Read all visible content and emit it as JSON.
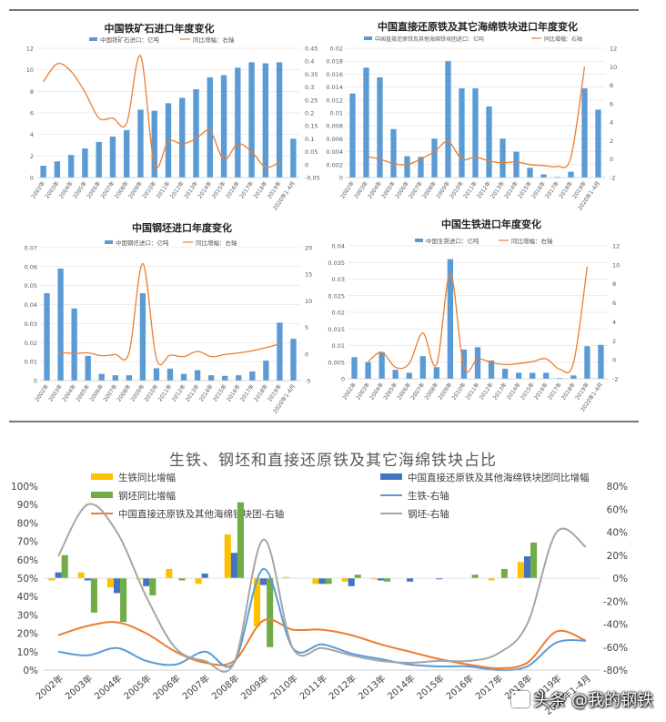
{
  "colors": {
    "bar": "#5b9bd5",
    "line": "#ed7d31",
    "axis_text": "#595959",
    "grid": "#d9d9d9",
    "yellow": "#ffc000",
    "blue": "#4472c4",
    "green": "#70ad47",
    "lightblue": "#5b9bd5",
    "grey": "#a5a5a5",
    "orange": "#ed7d31"
  },
  "watermark": {
    "text": "头条 @我的钢铁",
    "icon": "toutiao-logo-icon"
  },
  "chart_data": [
    {
      "type": "bar",
      "title": "中国铁矿石进口年度变化",
      "legend_bar": "中国铁矿石进口：亿吨",
      "legend_line": "同比增幅：右轴",
      "categories": [
        "2002年",
        "2003年",
        "2004年",
        "2005年",
        "2006年",
        "2007年",
        "2008年",
        "2009年",
        "2010年",
        "2011年",
        "2012年",
        "2013年",
        "2014年",
        "2015年",
        "2016年",
        "2017年",
        "2018年",
        "2019年",
        "2020年1-4月"
      ],
      "values": [
        1.1,
        1.5,
        2.1,
        2.7,
        3.3,
        3.8,
        4.4,
        6.3,
        6.2,
        6.9,
        7.4,
        8.2,
        9.3,
        9.5,
        10.2,
        10.7,
        10.6,
        10.7,
        3.6
      ],
      "line_values": [
        0.32,
        0.39,
        0.36,
        0.28,
        0.18,
        0.18,
        0.16,
        0.42,
        0.0,
        0.09,
        0.08,
        0.1,
        0.13,
        0.02,
        0.08,
        0.05,
        -0.01,
        0.01,
        null
      ],
      "ylim": [
        0,
        12
      ],
      "yticks": [
        "0",
        "2",
        "4",
        "6",
        "8",
        "10",
        "12"
      ],
      "y2lim": [
        -0.05,
        0.45
      ],
      "y2ticks": [
        "-0.05",
        "0",
        "0.05",
        "0.1",
        "0.15",
        "0.2",
        "0.25",
        "0.3",
        "0.35",
        "0.4",
        "0.45"
      ]
    },
    {
      "type": "bar",
      "title": "中国直接还原铁及其它海绵铁块进口年度变化",
      "legend_bar": "中国直接还原铁及其他海绵铁块团进口：亿吨",
      "legend_line": "同比增幅：右轴",
      "categories": [
        "2002年",
        "2003年",
        "2004年",
        "2005年",
        "2006年",
        "2007年",
        "2008年",
        "2009年",
        "2010年",
        "2011年",
        "2012年",
        "2013年",
        "2014年",
        "2015年",
        "2016年",
        "2017年",
        "2018年",
        "2019年",
        "2020年1-4月"
      ],
      "values": [
        0.013,
        0.017,
        0.0155,
        0.0075,
        0.0033,
        0.0032,
        0.006,
        0.018,
        0.0138,
        0.0138,
        0.011,
        0.006,
        0.004,
        0.0015,
        0.0005,
        0.0001,
        0.0009,
        0.0138,
        0.0105
      ],
      "line_values": [
        null,
        0.3,
        0.0,
        -0.5,
        -0.6,
        0.0,
        0.8,
        1.9,
        0.0,
        0.2,
        -0.2,
        -0.4,
        -0.3,
        -0.6,
        -0.7,
        -0.8,
        0.2,
        10.0,
        null
      ],
      "ylim": [
        0,
        0.02
      ],
      "yticks": [
        "0",
        "0.002",
        "0.004",
        "0.006",
        "0.008",
        "0.01",
        "0.012",
        "0.014",
        "0.016",
        "0.018",
        "0.02"
      ],
      "y2lim": [
        -2,
        12
      ],
      "y2ticks": [
        "-2",
        "0",
        "2",
        "4",
        "6",
        "8",
        "10",
        "12"
      ]
    },
    {
      "type": "bar",
      "title": "中国钢坯进口年度变化",
      "legend_bar": "中国钢坯进口：亿吨",
      "legend_line": "同比增幅：右轴",
      "categories": [
        "2002年",
        "2003年",
        "2004年",
        "2005年",
        "2006年",
        "2007年",
        "2008年",
        "2009年",
        "2010年",
        "2011年",
        "2012年",
        "2013年",
        "2014年",
        "2015年",
        "2016年",
        "2017年",
        "2018年",
        "2019年",
        "2020年1-4月"
      ],
      "values": [
        0.046,
        0.059,
        0.038,
        0.013,
        0.0035,
        0.0028,
        0.0028,
        0.046,
        0.0065,
        0.0063,
        0.0035,
        0.0055,
        0.0028,
        0.0025,
        0.0028,
        0.0048,
        0.0105,
        0.0305,
        0.022
      ],
      "line_values": [
        null,
        0.3,
        0.1,
        0.2,
        -0.3,
        -0.1,
        0.2,
        17.0,
        -0.9,
        -0.2,
        -0.5,
        0.5,
        -0.5,
        -0.1,
        0.2,
        0.6,
        1.2,
        1.9,
        null
      ],
      "ylim": [
        0,
        0.07
      ],
      "yticks": [
        "0",
        "0.01",
        "0.02",
        "0.03",
        "0.04",
        "0.05",
        "0.06",
        "0.07"
      ],
      "y2lim": [
        -5,
        20
      ],
      "y2ticks": [
        "-5",
        "0",
        "5",
        "10",
        "15",
        "20"
      ]
    },
    {
      "type": "bar",
      "title": "中国生铁进口年度变化",
      "legend_bar": "中国生铁进口：亿吨",
      "legend_line": "同比增幅：右轴",
      "categories": [
        "2002年",
        "2003年",
        "2004年",
        "2005年",
        "2006年",
        "2007年",
        "2008年",
        "2009年",
        "2010年",
        "2011年",
        "2012年",
        "2013年",
        "2014年",
        "2015年",
        "2016年",
        "2017年",
        "2018年",
        "2019年",
        "2020年1-4月"
      ],
      "values": [
        0.0065,
        0.005,
        0.008,
        0.0027,
        0.0018,
        0.0068,
        0.0035,
        0.036,
        0.0088,
        0.0095,
        0.0055,
        0.003,
        0.0018,
        0.0018,
        0.0018,
        0.0002,
        0.001,
        0.0098,
        0.0102
      ],
      "line_values": [
        null,
        -0.2,
        0.8,
        -0.8,
        -0.4,
        2.8,
        -0.5,
        9.1,
        -0.8,
        0.1,
        -0.3,
        -0.5,
        -0.4,
        -0.2,
        0.1,
        -1.0,
        -0.3,
        9.8,
        null
      ],
      "ylim": [
        0,
        0.04
      ],
      "yticks": [
        "0",
        "0.005",
        "0.01",
        "0.015",
        "0.02",
        "0.025",
        "0.03",
        "0.035",
        "0.04"
      ],
      "y2lim": [
        -2,
        12
      ],
      "y2ticks": [
        "-2",
        "0",
        "2",
        "4",
        "6",
        "8",
        "10",
        "12"
      ]
    },
    {
      "type": "bar",
      "title": "生铁、钢坯和直接还原铁及其它海绵铁块占比",
      "categories": [
        "2002年",
        "2003年",
        "2004年",
        "2005年",
        "2006年",
        "2007年",
        "2008年",
        "2009年",
        "2010年",
        "2011年",
        "2012年",
        "2013年",
        "2014年",
        "2015年",
        "2016年",
        "2017年",
        "2018年",
        "2019年",
        "2020年1-4月"
      ],
      "ylim": [
        0,
        1
      ],
      "yticks": [
        "0%",
        "10%",
        "20%",
        "30%",
        "40%",
        "50%",
        "60%",
        "70%",
        "80%",
        "90%",
        "100%"
      ],
      "y2lim": [
        -0.8,
        0.8
      ],
      "y2ticks": [
        "-80%",
        "-60%",
        "-40%",
        "-20%",
        "0%",
        "20%",
        "40%",
        "60%",
        "80%"
      ],
      "series": [
        {
          "name": "生铁同比增幅",
          "kind": "bar",
          "color_key": "yellow",
          "values": [
            -0.02,
            0.05,
            -0.08,
            -0.01,
            0.08,
            -0.05,
            0.38,
            -0.42,
            0.01,
            -0.05,
            -0.03,
            -0.01,
            0.0,
            0.0,
            0.0,
            -0.02,
            0.14,
            null,
            null
          ]
        },
        {
          "name": "中国直接还原铁及其他海绵铁块团同比增幅",
          "kind": "bar",
          "color_key": "blue",
          "values": [
            0.05,
            -0.02,
            -0.13,
            -0.07,
            0.0,
            0.04,
            0.22,
            -0.06,
            0.0,
            -0.05,
            -0.07,
            -0.02,
            -0.03,
            -0.01,
            0.0,
            0.0,
            0.19,
            null,
            null
          ]
        },
        {
          "name": "钢坯同比增幅",
          "kind": "bar",
          "color_key": "green",
          "values": [
            0.2,
            -0.3,
            -0.38,
            -0.15,
            -0.02,
            0.0,
            0.66,
            -0.6,
            0.0,
            -0.05,
            0.03,
            -0.03,
            0.0,
            0.0,
            0.03,
            0.08,
            0.31,
            null,
            null
          ]
        },
        {
          "name": "中国直接还原铁及其他海绵铁块团-右轴",
          "kind": "line",
          "axis": "right",
          "color_key": "orange",
          "values": [
            0.19,
            0.24,
            0.26,
            0.2,
            0.1,
            0.04,
            0.05,
            0.27,
            0.22,
            0.22,
            0.19,
            0.14,
            0.1,
            0.06,
            0.03,
            0.01,
            0.04,
            0.21,
            0.16
          ]
        },
        {
          "name": "生铁-右轴",
          "kind": "line",
          "axis": "right",
          "color_key": "lightblue",
          "values": [
            0.1,
            0.08,
            0.12,
            0.05,
            0.03,
            0.1,
            0.04,
            0.55,
            0.12,
            0.14,
            0.09,
            0.06,
            0.03,
            0.02,
            0.02,
            0.0,
            0.02,
            0.15,
            0.16
          ]
        },
        {
          "name": "钢坯-右轴",
          "kind": "line",
          "axis": "right",
          "color_key": "grey",
          "values": [
            0.62,
            0.9,
            0.75,
            0.4,
            0.12,
            0.05,
            0.04,
            0.71,
            0.12,
            0.12,
            0.08,
            0.05,
            0.04,
            0.05,
            0.05,
            0.09,
            0.25,
            0.75,
            0.67
          ]
        }
      ]
    }
  ]
}
